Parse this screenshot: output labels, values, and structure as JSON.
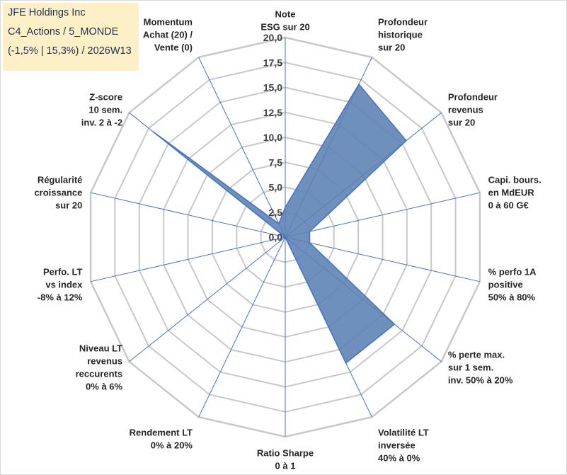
{
  "info": {
    "line1": "JFE Holdings Inc",
    "line2": "C4_Actions / 5_MONDE",
    "line3": "(-1,5% | 15,3%) / 2026W13"
  },
  "colors": {
    "fill": "#5b7fb4",
    "outline": "#4472c4",
    "grid": "#c8c8c8",
    "spoke": "#4472c4",
    "info_bg": "#fdf0c7"
  },
  "chart_data": {
    "type": "radar",
    "range": [
      0,
      20
    ],
    "ticks": [
      "0,0",
      "2,5",
      "5,0",
      "7,5",
      "10,0",
      "12,5",
      "15,0",
      "17,5",
      "20,0"
    ],
    "categories": [
      [
        "Note",
        "ESG sur 20"
      ],
      [
        "Profondeur",
        "historique",
        "sur 20"
      ],
      [
        "Profondeur",
        "revenus",
        "sur 20"
      ],
      [
        "Capi. bours.",
        "en MdEUR",
        "0 à 60 G€"
      ],
      [
        "% perfo 1A",
        "positive",
        "50% à 80%"
      ],
      [
        "% perte max.",
        "sur 1 sem.",
        "inv. 50% à 20%"
      ],
      [
        "Volatilité LT",
        "inversée",
        "40% à 0%"
      ],
      [
        "Ratio Sharpe",
        "0 à 1"
      ],
      [
        "Rendement LT",
        "0% à 20%"
      ],
      [
        "Niveau LT",
        "revenus",
        "reccurents",
        "0% à 6%"
      ],
      [
        "Perfo. LT",
        "vs index",
        "-8% à 12%"
      ],
      [
        "Régularité",
        "croissance",
        "sur 20"
      ],
      [
        "Z-score",
        "10 sem.",
        "inv. 2 à -2"
      ],
      [
        "Momentum",
        "Achat (20) /",
        "Vente (0)"
      ]
    ],
    "values": [
      3,
      17,
      15.5,
      2.5,
      2.5,
      14,
      14,
      0,
      0,
      0,
      0,
      0,
      17,
      1.5
    ],
    "grid": true,
    "legend": "none"
  }
}
